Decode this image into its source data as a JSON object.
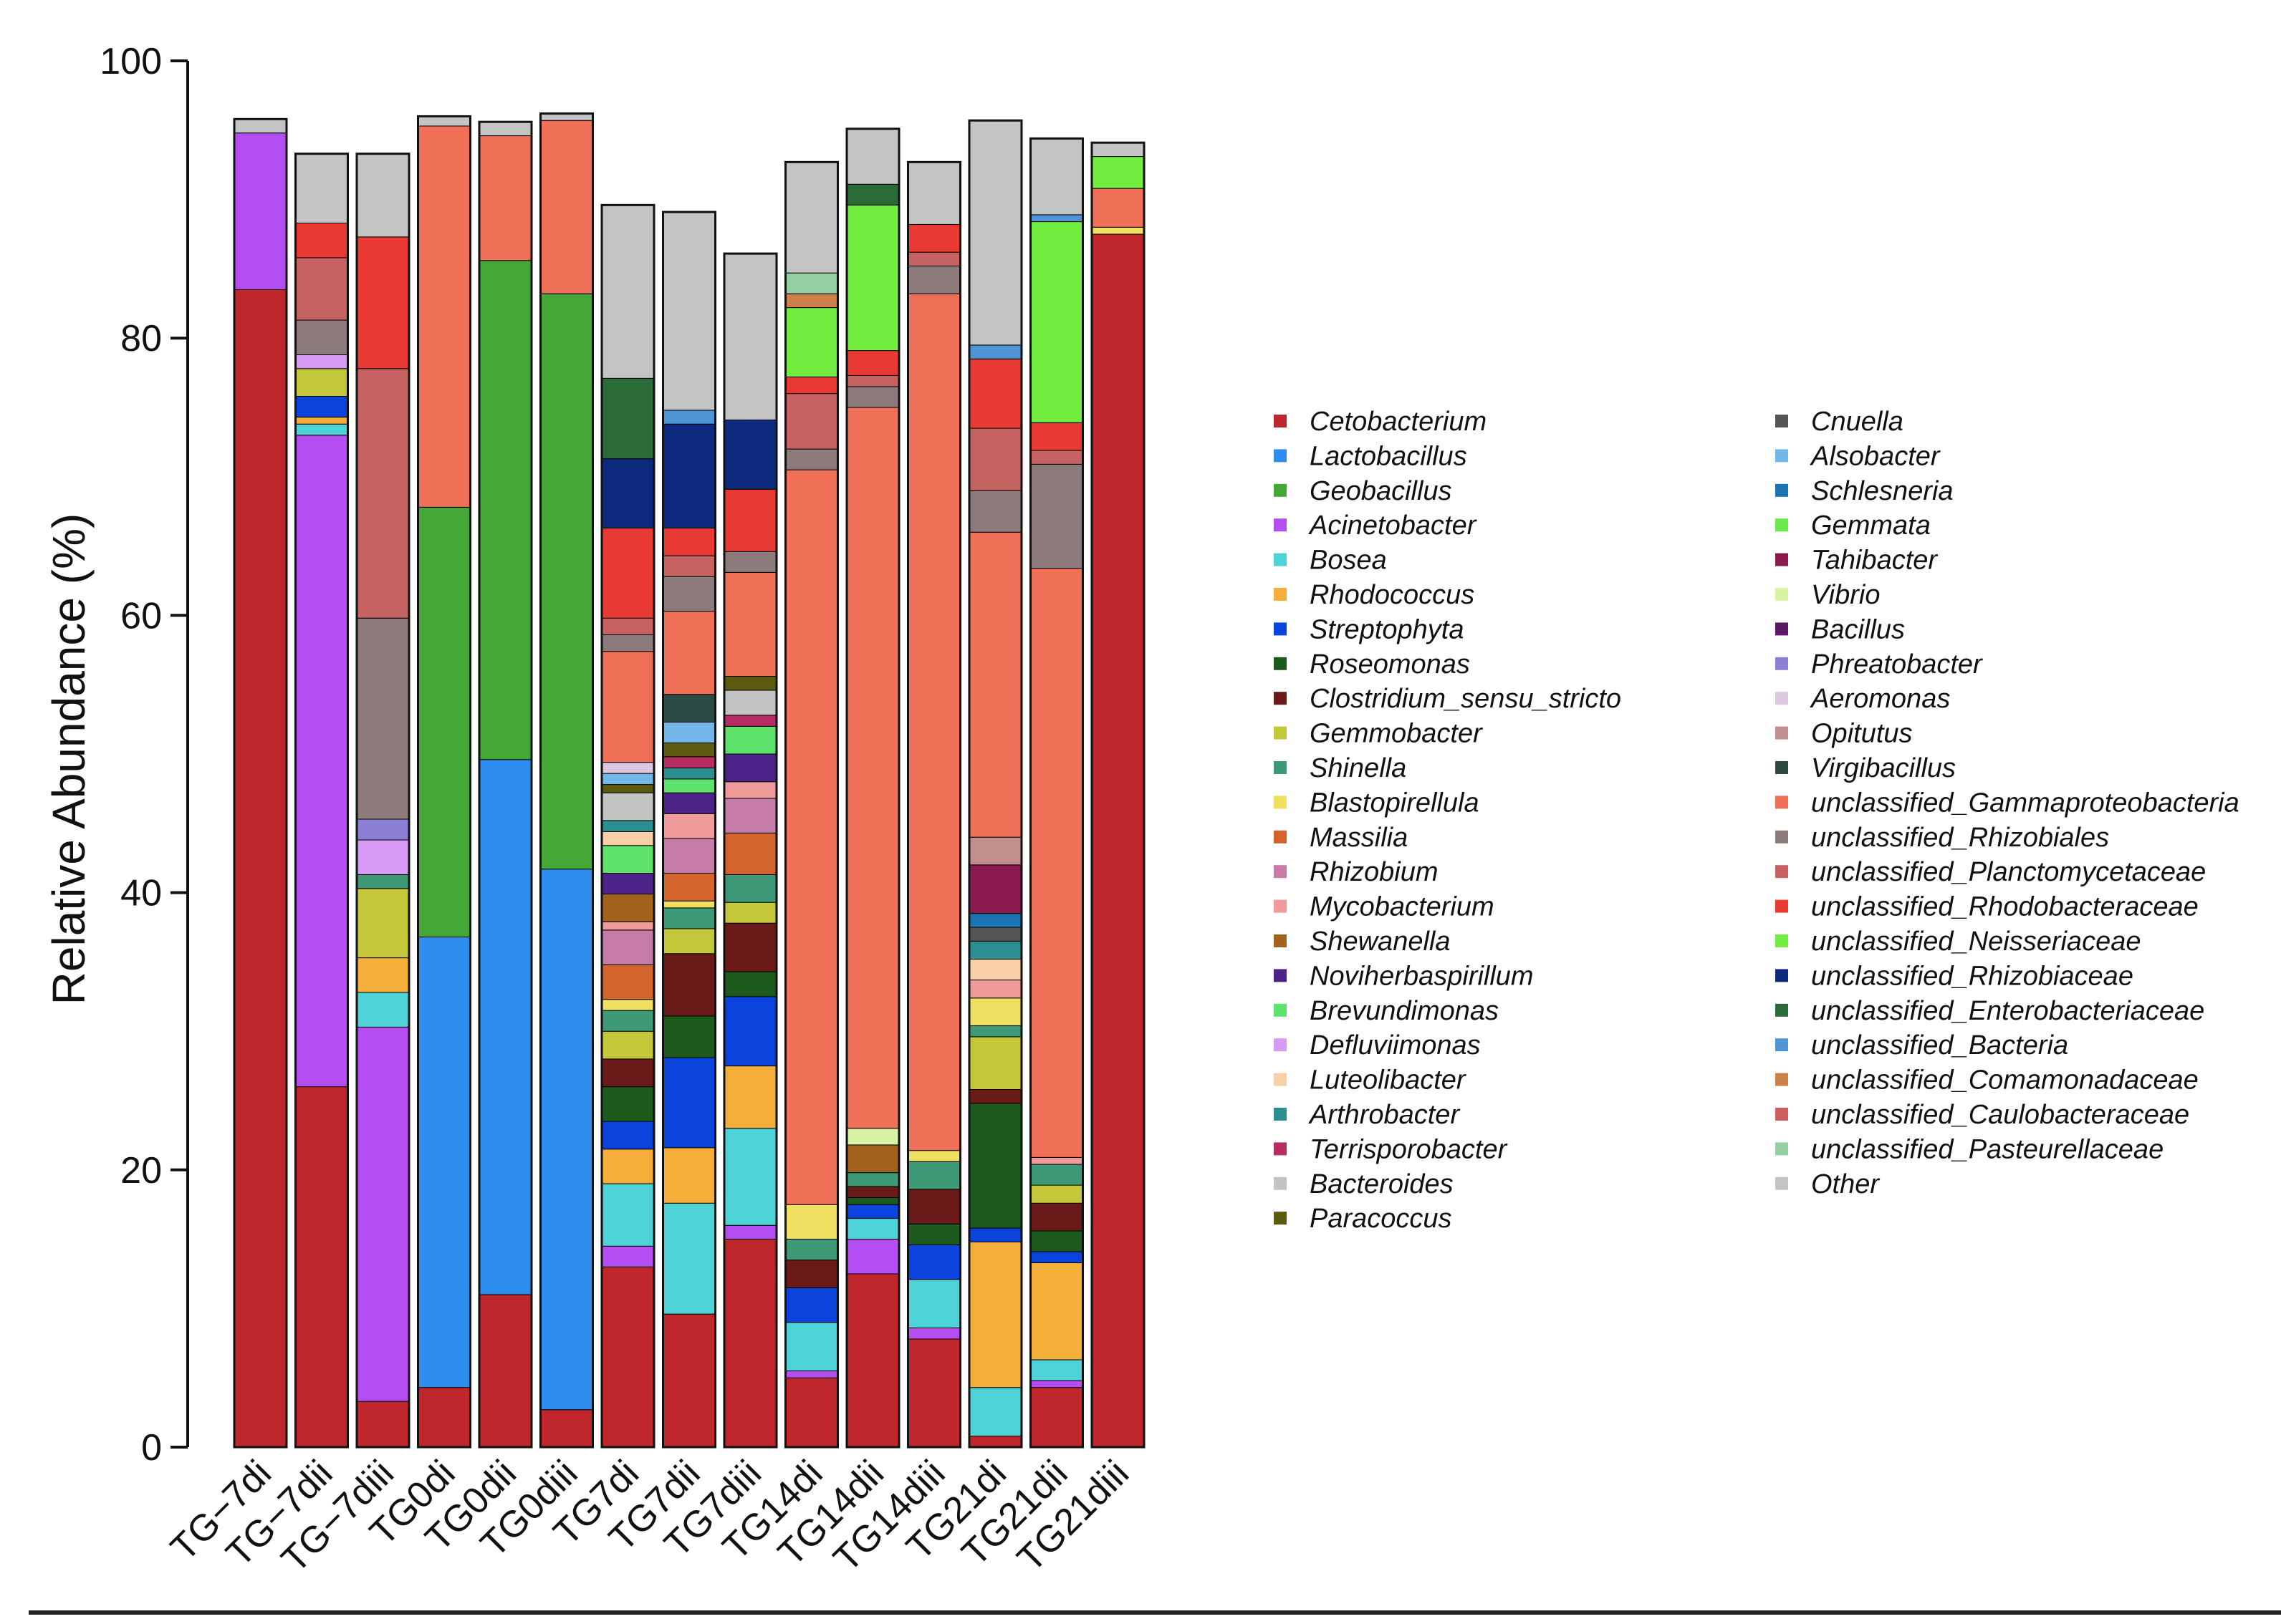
{
  "chart_data": {
    "type": "stacked-bar",
    "title": "",
    "xlabel": "",
    "ylabel": "Relative Abundance (%)",
    "ylim": [
      0,
      100
    ],
    "yticks": [
      0,
      20,
      40,
      60,
      80,
      100
    ],
    "categories": [
      "TG−7di",
      "TG−7dii",
      "TG−7diii",
      "TG0di",
      "TG0dii",
      "TG0diii",
      "TG7di",
      "TG7dii",
      "TG7diii",
      "TG14di",
      "TG14dii",
      "TG14diii",
      "TG21di",
      "TG21dii",
      "TG21diii"
    ],
    "series": [
      {
        "name": "Cetobacterium",
        "color": "#c0272d",
        "values": [
          83.5,
          26,
          3.3,
          4.3,
          11,
          2.7,
          13,
          9.6,
          15,
          5,
          12.5,
          7.8,
          0.8,
          4.3,
          87.5
        ]
      },
      {
        "name": "Lactobacillus",
        "color": "#2e8ef0",
        "values": [
          0,
          0,
          0,
          32.5,
          38.6,
          39,
          0,
          0,
          0,
          0,
          0,
          0,
          0,
          0,
          0
        ]
      },
      {
        "name": "Geobacillus",
        "color": "#45a735",
        "values": [
          0,
          0,
          0,
          31,
          36,
          41.5,
          0,
          0,
          0,
          0,
          0,
          0,
          0,
          0,
          0
        ]
      },
      {
        "name": "Acinetobacter",
        "color": "#b54ef2",
        "values": [
          11.3,
          47,
          27,
          0,
          0,
          0,
          1.5,
          0,
          1,
          0.5,
          2.5,
          0.8,
          0,
          0.5,
          0
        ]
      },
      {
        "name": "Bosea",
        "color": "#4dd3d8",
        "values": [
          0,
          0.8,
          2.5,
          0,
          0,
          0,
          4.5,
          8,
          7,
          3.5,
          1.5,
          3.5,
          3.5,
          1.5,
          0
        ]
      },
      {
        "name": "Rhodococcus",
        "color": "#f5ae3a",
        "values": [
          0,
          0.5,
          2.5,
          0,
          0,
          0,
          2.5,
          4,
          4.5,
          0,
          0,
          0,
          10.5,
          7,
          0
        ]
      },
      {
        "name": "Streptophyta",
        "color": "#0b44dd",
        "values": [
          0,
          1.5,
          0,
          0,
          0,
          0,
          2,
          6.5,
          5,
          2.5,
          1,
          2.5,
          1,
          0.8,
          0
        ]
      },
      {
        "name": "Roseomonas",
        "color": "#1d5a1d",
        "values": [
          0,
          0,
          0,
          0,
          0,
          0,
          2.5,
          3,
          1.8,
          0,
          0.5,
          1.5,
          9,
          1.5,
          0
        ]
      },
      {
        "name": "Clostridium_sensu_stricto",
        "color": "#6b1a1a",
        "values": [
          0,
          0,
          0,
          0,
          0,
          0,
          2,
          4.5,
          3.5,
          2,
          0.8,
          2.5,
          1,
          2,
          0
        ]
      },
      {
        "name": "Gemmobacter",
        "color": "#c5c73b",
        "values": [
          0,
          2,
          5,
          0,
          0,
          0,
          2,
          1.8,
          1.5,
          0,
          0,
          0,
          3.8,
          1.3,
          0
        ]
      },
      {
        "name": "Shinella",
        "color": "#3e9a76",
        "values": [
          0,
          0,
          1,
          0,
          0,
          0,
          1.5,
          1.5,
          2,
          1.5,
          1,
          2,
          0.8,
          1.5,
          0
        ]
      },
      {
        "name": "Blastopirellula",
        "color": "#f0e061",
        "values": [
          0,
          0,
          0,
          0,
          0,
          0,
          0.8,
          0.5,
          0,
          2.5,
          0,
          0.8,
          2,
          0,
          0.5
        ]
      },
      {
        "name": "Massilia",
        "color": "#d2642c",
        "values": [
          0,
          0,
          0,
          0,
          0,
          0,
          2.5,
          2,
          3,
          0,
          0,
          0,
          0,
          0,
          0
        ]
      },
      {
        "name": "Rhizobium",
        "color": "#c77ba8",
        "values": [
          0,
          0,
          0,
          0,
          0,
          0,
          2.5,
          2.5,
          2.5,
          0,
          0,
          0,
          0,
          0,
          0
        ]
      },
      {
        "name": "Mycobacterium",
        "color": "#f09a9a",
        "values": [
          0,
          0,
          0,
          0,
          0,
          0,
          0.6,
          1.8,
          1.2,
          0,
          0,
          0,
          1.3,
          0.5,
          0
        ]
      },
      {
        "name": "Shewanella",
        "color": "#a2631d",
        "values": [
          0,
          0,
          0,
          0,
          0,
          0,
          2,
          0,
          0,
          0,
          2,
          0,
          0,
          0,
          0
        ]
      },
      {
        "name": "Noviherbaspirillum",
        "color": "#4c2388",
        "values": [
          0,
          0,
          0,
          0,
          0,
          0,
          1.5,
          1.5,
          2,
          0,
          0,
          0,
          0,
          0,
          0
        ]
      },
      {
        "name": "Brevundimonas",
        "color": "#5de36b",
        "values": [
          0,
          0,
          0,
          0,
          0,
          0,
          2,
          1,
          2,
          0,
          0,
          0,
          0,
          0,
          0
        ]
      },
      {
        "name": "Defluviimonas",
        "color": "#d79af5",
        "values": [
          0,
          1,
          2.5,
          0,
          0,
          0,
          0,
          0,
          0,
          0,
          0,
          0,
          0,
          0,
          0
        ]
      },
      {
        "name": "Luteolibacter",
        "color": "#f8cfa6",
        "values": [
          0,
          0,
          0,
          0,
          0,
          0,
          1,
          0,
          0,
          0,
          0,
          0,
          1.5,
          0,
          0
        ]
      },
      {
        "name": "Arthrobacter",
        "color": "#2b8f8f",
        "values": [
          0,
          0,
          0,
          0,
          0,
          0,
          0.8,
          0.8,
          0,
          0,
          0,
          0,
          1.3,
          0,
          0
        ]
      },
      {
        "name": "Terrisporobacter",
        "color": "#b92c63",
        "values": [
          0,
          0,
          0,
          0,
          0,
          0,
          0,
          0.8,
          0.8,
          0,
          0,
          0,
          0,
          0,
          0
        ]
      },
      {
        "name": "Bacteroides",
        "color": "#c3c3c3",
        "values": [
          0,
          0,
          0,
          0,
          0,
          0,
          2,
          0,
          1.8,
          0,
          0,
          0,
          0,
          0,
          0
        ]
      },
      {
        "name": "Paracoccus",
        "color": "#5b5a0f",
        "values": [
          0,
          0,
          0,
          0,
          0,
          0,
          0.6,
          1,
          1,
          0,
          0,
          0,
          0,
          0,
          0
        ]
      },
      {
        "name": "Cnuella",
        "color": "#555555",
        "values": [
          0,
          0,
          0,
          0,
          0,
          0,
          0,
          0,
          0,
          0,
          0,
          0,
          1,
          0,
          0
        ]
      },
      {
        "name": "Alsobacter",
        "color": "#73b6e8",
        "values": [
          0,
          0,
          0,
          0,
          0,
          0,
          0.8,
          1.5,
          0,
          0,
          0,
          0,
          0,
          0,
          0
        ]
      },
      {
        "name": "Schlesneria",
        "color": "#1c74b4",
        "values": [
          0,
          0,
          0,
          0,
          0,
          0,
          0,
          0,
          0,
          0,
          0,
          0,
          1,
          0,
          0
        ]
      },
      {
        "name": "Gemmata",
        "color": "#6ae84c",
        "values": [
          0,
          0,
          0,
          0,
          0,
          0,
          0,
          0,
          0,
          0,
          0,
          0,
          0,
          0,
          0
        ]
      },
      {
        "name": "Tahibacter",
        "color": "#8b1b4e",
        "values": [
          0,
          0,
          0,
          0,
          0,
          0,
          0,
          0,
          0,
          0,
          0,
          0,
          3.5,
          0,
          0
        ]
      },
      {
        "name": "Vibrio",
        "color": "#d9f2a3",
        "values": [
          0,
          0,
          0,
          0,
          0,
          0,
          0,
          0,
          0,
          0,
          1.2,
          0,
          0,
          0,
          0
        ]
      },
      {
        "name": "Bacillus",
        "color": "#5b1768",
        "values": [
          0,
          0,
          0,
          0,
          0,
          0,
          0,
          0,
          0,
          0,
          0,
          0,
          0,
          0,
          0
        ]
      },
      {
        "name": "Phreatobacter",
        "color": "#8b7fd6",
        "values": [
          0,
          0,
          1.5,
          0,
          0,
          0,
          0,
          0,
          0,
          0,
          0,
          0,
          0,
          0,
          0
        ]
      },
      {
        "name": "Aeromonas",
        "color": "#dcc6e0",
        "values": [
          0,
          0,
          0,
          0,
          0,
          0,
          0.8,
          0,
          0,
          0,
          0,
          0,
          0,
          0,
          0
        ]
      },
      {
        "name": "Opitutus",
        "color": "#c28e8e",
        "values": [
          0,
          0,
          0,
          0,
          0,
          0,
          0,
          0,
          0,
          0,
          0,
          0,
          2,
          0,
          0
        ]
      },
      {
        "name": "Virgibacillus",
        "color": "#2d4a44",
        "values": [
          0,
          0,
          0,
          0,
          0,
          0,
          0,
          2,
          0,
          0,
          0,
          0,
          0,
          0,
          0
        ]
      },
      {
        "name": "unclassified_Gammaproteobacteria",
        "color": "#ef6f57",
        "values": [
          0,
          0,
          0,
          27.5,
          9,
          12.5,
          8,
          6,
          7.5,
          53,
          52,
          61.8,
          22,
          42.5,
          2.8
        ]
      },
      {
        "name": "unclassified_Rhizobiales",
        "color": "#8d7b7b",
        "values": [
          0,
          2.5,
          14.5,
          0,
          0,
          0,
          1.2,
          2.5,
          1.5,
          1.5,
          1.5,
          2,
          3,
          7.5,
          0
        ]
      },
      {
        "name": "unclassified_Planctomycetaceae",
        "color": "#c66262",
        "values": [
          0,
          4.5,
          18,
          0,
          0,
          0,
          1.2,
          1.5,
          0,
          4,
          0.8,
          1,
          4.5,
          1,
          0
        ]
      },
      {
        "name": "unclassified_Rhodobacteraceae",
        "color": "#e83a33",
        "values": [
          0,
          2.5,
          9.5,
          0,
          0,
          0,
          6.5,
          2,
          4.5,
          1.2,
          1.8,
          2,
          5,
          2,
          0
        ]
      },
      {
        "name": "unclassified_Neisseriaceae",
        "color": "#71ee3f",
        "values": [
          0,
          0,
          0,
          0,
          0,
          0,
          0,
          0,
          0,
          5,
          10.5,
          0,
          0,
          14.5,
          2.3
        ]
      },
      {
        "name": "unclassified_Rhizobiaceae",
        "color": "#0d2a7e",
        "values": [
          0,
          0,
          0,
          0,
          0,
          0,
          5,
          7.5,
          5,
          0,
          0,
          0,
          0,
          0,
          0
        ]
      },
      {
        "name": "unclassified_Enterobacteriaceae",
        "color": "#2b6b37",
        "values": [
          0,
          0,
          0,
          0,
          0,
          0,
          5.8,
          0,
          0,
          0,
          1.5,
          0,
          0,
          0,
          0
        ]
      },
      {
        "name": "unclassified_Bacteria",
        "color": "#4f94d4",
        "values": [
          0,
          0,
          0,
          0,
          0,
          0,
          0,
          1,
          0,
          0,
          0,
          0,
          1,
          0.5,
          0
        ]
      },
      {
        "name": "unclassified_Comamonadaceae",
        "color": "#cd8047",
        "values": [
          0,
          0,
          0,
          0,
          0,
          0,
          0,
          0,
          0,
          1,
          0,
          0,
          0,
          0,
          0
        ]
      },
      {
        "name": "unclassified_Caulobacteraceae",
        "color": "#cf5e5e",
        "values": [
          0,
          0,
          0,
          0,
          0,
          0,
          0,
          0,
          0,
          0,
          0,
          0,
          0,
          0,
          0
        ]
      },
      {
        "name": "unclassified_Pasteurellaceae",
        "color": "#94cfa3",
        "values": [
          0,
          0,
          0,
          0,
          0,
          0,
          0,
          0,
          0,
          1.5,
          0,
          0,
          0,
          0,
          0
        ]
      },
      {
        "name": "Other",
        "color": "#c4c4c4",
        "values": [
          1,
          5,
          6,
          0.7,
          1,
          0.5,
          12.5,
          14.3,
          12,
          8,
          4,
          4.5,
          16.2,
          5.5,
          1
        ]
      }
    ],
    "legend": {
      "columns": 2,
      "column_1": [
        "Cetobacterium",
        "Lactobacillus",
        "Geobacillus",
        "Acinetobacter",
        "Bosea",
        "Rhodococcus",
        "Streptophyta",
        "Roseomonas",
        "Clostridium_sensu_stricto",
        "Gemmobacter",
        "Shinella",
        "Blastopirellula",
        "Massilia",
        "Rhizobium",
        "Mycobacterium",
        "Shewanella",
        "Noviherbaspirillum",
        "Brevundimonas",
        "Defluviimonas",
        "Luteolibacter",
        "Arthrobacter",
        "Terrisporobacter",
        "Bacteroides",
        "Paracoccus"
      ],
      "column_2": [
        "Cnuella",
        "Alsobacter",
        "Schlesneria",
        "Gemmata",
        "Tahibacter",
        "Vibrio",
        "Bacillus",
        "Phreatobacter",
        "Aeromonas",
        "Opitutus",
        "Virgibacillus",
        "unclassified_Gammaproteobacteria",
        "unclassified_Rhizobiales",
        "unclassified_Planctomycetaceae",
        "unclassified_Rhodobacteraceae",
        "unclassified_Neisseriaceae",
        "unclassified_Rhizobiaceae",
        "unclassified_Enterobacteriaceae",
        "unclassified_Bacteria",
        "unclassified_Comamonadaceae",
        "unclassified_Caulobacteraceae",
        "unclassified_Pasteurellaceae",
        "Other"
      ]
    }
  }
}
